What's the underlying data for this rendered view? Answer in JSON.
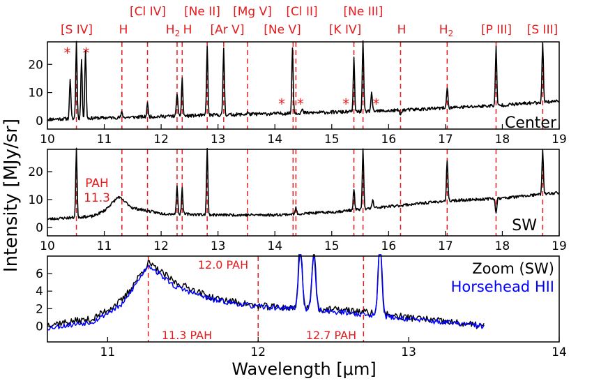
{
  "figure": {
    "ylabel": "Intensity [MJy/sr]",
    "xlabel": "Wavelength [μm]"
  },
  "chart_data": [
    {
      "type": "line",
      "panel": "center",
      "label": "Center",
      "xlim": [
        10,
        19
      ],
      "ylim": [
        -3,
        28
      ],
      "xticks": [
        "10",
        "11",
        "12",
        "13",
        "14",
        "15",
        "16",
        "17",
        "18",
        "19"
      ],
      "yticks": [
        "0",
        "10",
        "20"
      ],
      "line_labels": [
        "[S IV]",
        "H",
        "[Cl IV]",
        "H2",
        "[Ne II]",
        "H",
        "[Ar V]",
        "[Mg V]",
        "[Ne V]",
        "[Cl II]",
        "[K IV]",
        "[Ne III]",
        "H",
        "H2",
        "[P III]",
        "[S III]"
      ],
      "line_positions": [
        10.51,
        11.31,
        11.76,
        12.28,
        12.37,
        12.81,
        13.1,
        13.52,
        14.32,
        14.37,
        15.39,
        15.55,
        16.21,
        17.03,
        17.89,
        18.71
      ],
      "star_positions": [
        10.35,
        10.68,
        14.12,
        14.45,
        15.25,
        15.78
      ],
      "series": [
        {
          "name": "Center",
          "color": "#000000",
          "continuum": [
            [
              10,
              0.5
            ],
            [
              12,
              1.5
            ],
            [
              14,
              2.5
            ],
            [
              16,
              3.5
            ],
            [
              18,
              5.5
            ],
            [
              19,
              7
            ]
          ],
          "peaks": [
            [
              10.4,
              15
            ],
            [
              10.51,
              28
            ],
            [
              10.6,
              22
            ],
            [
              10.67,
              25
            ],
            [
              11.31,
              3
            ],
            [
              11.76,
              6
            ],
            [
              12.28,
              10
            ],
            [
              12.37,
              15
            ],
            [
              12.81,
              26
            ],
            [
              13.1,
              26
            ],
            [
              13.52,
              3
            ],
            [
              14.31,
              26
            ],
            [
              14.48,
              4
            ],
            [
              15.39,
              22
            ],
            [
              15.55,
              28
            ],
            [
              15.7,
              10
            ],
            [
              16.21,
              2
            ],
            [
              17.03,
              12
            ],
            [
              17.89,
              26
            ],
            [
              18.71,
              28
            ]
          ]
        }
      ]
    },
    {
      "type": "line",
      "panel": "sw",
      "label": "SW",
      "xlim": [
        10,
        19
      ],
      "ylim": [
        -3,
        28
      ],
      "xticks": [
        "10",
        "11",
        "12",
        "13",
        "14",
        "15",
        "16",
        "17",
        "18",
        "19"
      ],
      "yticks": [
        "0",
        "10",
        "20"
      ],
      "annotation": [
        "PAH",
        "11.3"
      ],
      "line_positions": [
        10.51,
        11.31,
        11.76,
        12.28,
        12.37,
        12.81,
        13.52,
        14.32,
        14.37,
        15.39,
        15.55,
        16.21,
        17.03,
        17.89,
        18.71
      ],
      "series": [
        {
          "name": "SW",
          "color": "#000000",
          "continuum": [
            [
              10,
              3
            ],
            [
              10.8,
              4
            ],
            [
              11.0,
              6
            ],
            [
              11.25,
              11
            ],
            [
              11.5,
              7
            ],
            [
              12,
              5
            ],
            [
              13,
              4.5
            ],
            [
              14,
              4.5
            ],
            [
              15,
              5.5
            ],
            [
              16,
              7.5
            ],
            [
              17,
              9.5
            ],
            [
              18,
              10.5
            ],
            [
              19,
              12.5
            ]
          ],
          "peaks": [
            [
              10.51,
              28
            ],
            [
              12.28,
              15
            ],
            [
              12.37,
              14
            ],
            [
              12.81,
              28
            ],
            [
              14.37,
              7
            ],
            [
              15.39,
              14
            ],
            [
              15.55,
              28
            ],
            [
              15.72,
              10
            ],
            [
              17.03,
              24
            ],
            [
              17.89,
              5
            ],
            [
              18.71,
              28
            ]
          ]
        }
      ]
    },
    {
      "type": "line",
      "panel": "zoom",
      "xlim": [
        10.6,
        14
      ],
      "ylim": [
        -1.8,
        8
      ],
      "xticks": [
        "11",
        "12",
        "13",
        "14"
      ],
      "yticks": [
        "0",
        "2",
        "4",
        "6"
      ],
      "legend": [
        "Zoom (SW)",
        "Horsehead HII"
      ],
      "pah_labels": [
        "12.0 PAH",
        "11.3 PAH",
        "12.7 PAH"
      ],
      "pah_positions": [
        12.0,
        11.27,
        12.7
      ],
      "series": [
        {
          "name": "Zoom (SW)",
          "color": "#000000",
          "continuum": [
            [
              10.6,
              0.2
            ],
            [
              10.9,
              0.8
            ],
            [
              11.1,
              3
            ],
            [
              11.27,
              7.2
            ],
            [
              11.45,
              5
            ],
            [
              11.7,
              3.2
            ],
            [
              12.0,
              2.3
            ],
            [
              12.3,
              2
            ],
            [
              12.6,
              1.8
            ],
            [
              12.9,
              1.2
            ],
            [
              13.5,
              0
            ]
          ],
          "peaks": [
            [
              12.28,
              10
            ],
            [
              12.37,
              9
            ],
            [
              12.81,
              9
            ]
          ]
        },
        {
          "name": "Horsehead HII",
          "color": "#0000ff",
          "continuum": [
            [
              10.6,
              -0.2
            ],
            [
              10.9,
              0.5
            ],
            [
              11.1,
              2.5
            ],
            [
              11.27,
              7
            ],
            [
              11.45,
              4.5
            ],
            [
              11.7,
              3
            ],
            [
              12.0,
              2.2
            ],
            [
              12.3,
              2
            ],
            [
              12.6,
              1.5
            ],
            [
              12.9,
              1
            ],
            [
              13.5,
              0
            ]
          ],
          "peaks": [
            [
              12.28,
              9
            ],
            [
              12.37,
              8
            ],
            [
              12.81,
              11
            ]
          ]
        }
      ]
    }
  ]
}
